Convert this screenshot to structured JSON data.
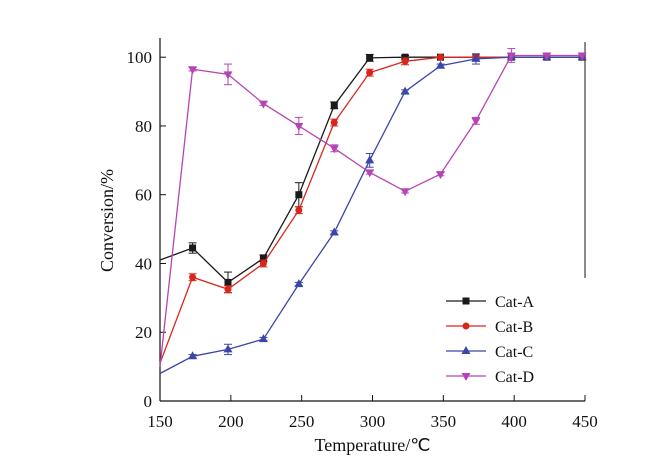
{
  "chart_data": {
    "type": "line",
    "xlabel": "Temperature/℃",
    "ylabel": "Conversion/%",
    "xlim": [
      150,
      450
    ],
    "ylim": [
      0,
      105
    ],
    "xticks": [
      "150",
      "200",
      "250",
      "300",
      "350",
      "400",
      "450"
    ],
    "yticks": [
      "0",
      "20",
      "40",
      "60",
      "80",
      "100"
    ],
    "legend_position": "bottom-right",
    "grid": false,
    "series": [
      {
        "name": "Cat-A",
        "color": "#1a1a1a",
        "marker": "square",
        "points": [
          [
            150,
            41
          ],
          [
            173,
            44.5
          ],
          [
            198,
            34.5
          ],
          [
            223,
            41.5
          ],
          [
            248,
            60
          ],
          [
            273,
            86
          ],
          [
            298,
            99.8
          ],
          [
            323,
            100
          ],
          [
            348,
            100
          ],
          [
            373,
            100
          ],
          [
            398,
            100
          ],
          [
            423,
            100
          ],
          [
            448,
            100
          ]
        ],
        "errors": [
          0,
          1.5,
          3,
          1,
          3.5,
          1,
          1,
          0.5,
          0,
          0,
          0,
          0,
          0
        ]
      },
      {
        "name": "Cat-B",
        "color": "#d9261c",
        "marker": "circle",
        "points": [
          [
            150,
            11
          ],
          [
            173,
            36
          ],
          [
            198,
            32.5
          ],
          [
            223,
            40
          ],
          [
            248,
            55.5
          ],
          [
            273,
            81
          ],
          [
            298,
            95.5
          ],
          [
            323,
            98.8
          ],
          [
            348,
            100
          ],
          [
            373,
            100
          ],
          [
            398,
            100
          ],
          [
            423,
            100
          ],
          [
            448,
            100
          ]
        ],
        "errors": [
          0,
          1,
          1,
          1,
          1,
          1,
          1,
          1,
          0,
          0,
          0,
          0,
          0
        ]
      },
      {
        "name": "Cat-C",
        "color": "#3b47a8",
        "marker": "triangle-up",
        "points": [
          [
            150,
            8
          ],
          [
            173,
            13
          ],
          [
            198,
            15
          ],
          [
            223,
            18
          ],
          [
            248,
            34
          ],
          [
            273,
            49
          ],
          [
            298,
            70
          ],
          [
            323,
            90
          ],
          [
            348,
            97.5
          ],
          [
            373,
            99.5
          ],
          [
            398,
            100
          ],
          [
            423,
            100
          ],
          [
            448,
            100
          ]
        ],
        "errors": [
          0,
          0.5,
          1.5,
          0.5,
          0.5,
          0.5,
          2,
          0.5,
          0.5,
          1.5,
          0,
          0,
          0
        ]
      },
      {
        "name": "Cat-D",
        "color": "#b545b5",
        "marker": "triangle-down",
        "points": [
          [
            150,
            10
          ],
          [
            173,
            96.5
          ],
          [
            198,
            95
          ],
          [
            223,
            86.5
          ],
          [
            248,
            80
          ],
          [
            273,
            73.5
          ],
          [
            298,
            66.5
          ],
          [
            323,
            61
          ],
          [
            348,
            66
          ],
          [
            373,
            81.5
          ],
          [
            398,
            100.5
          ],
          [
            423,
            100.5
          ],
          [
            448,
            100.5
          ]
        ],
        "errors": [
          0,
          0.5,
          3,
          0.5,
          2.5,
          1,
          0.5,
          0.5,
          0.5,
          1,
          2,
          0,
          0
        ]
      }
    ]
  }
}
